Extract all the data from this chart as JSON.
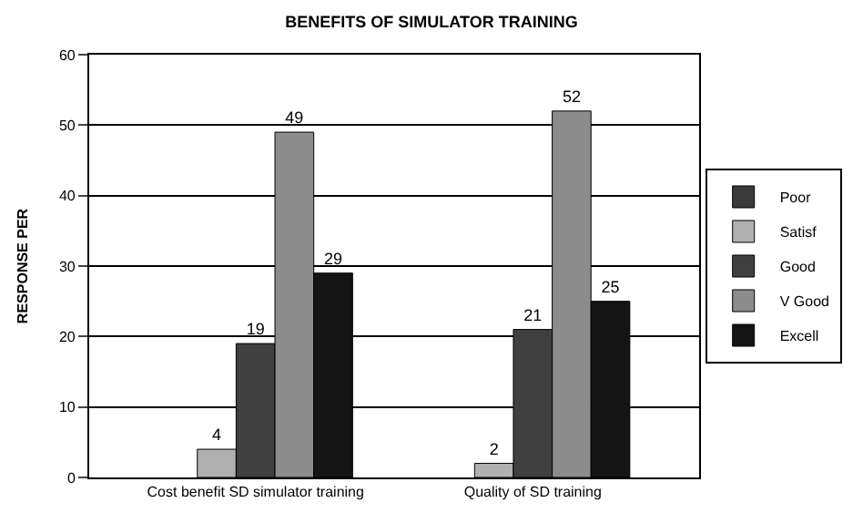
{
  "chart_data": {
    "type": "bar",
    "title": "BENEFITS OF SIMULATOR TRAINING",
    "ylabel": "RESPONSE PER",
    "categories": [
      "Cost benefit SD simulator training",
      "Quality of SD training"
    ],
    "series": [
      {
        "name": "Poor",
        "color": "#3a3a3a",
        "values": [
          null,
          null
        ]
      },
      {
        "name": "Satisf",
        "color": "#b0b0b0",
        "values": [
          4,
          2
        ]
      },
      {
        "name": "Good",
        "color": "#404040",
        "values": [
          19,
          21
        ]
      },
      {
        "name": "V Good",
        "color": "#8c8c8c",
        "values": [
          49,
          52
        ]
      },
      {
        "name": "Excell",
        "color": "#141414",
        "values": [
          29,
          25
        ]
      }
    ],
    "ylim": [
      0,
      60
    ],
    "yticks": [
      0,
      10,
      20,
      30,
      40,
      50,
      60
    ],
    "grid": "y",
    "legend": "right",
    "data_labels": true
  }
}
